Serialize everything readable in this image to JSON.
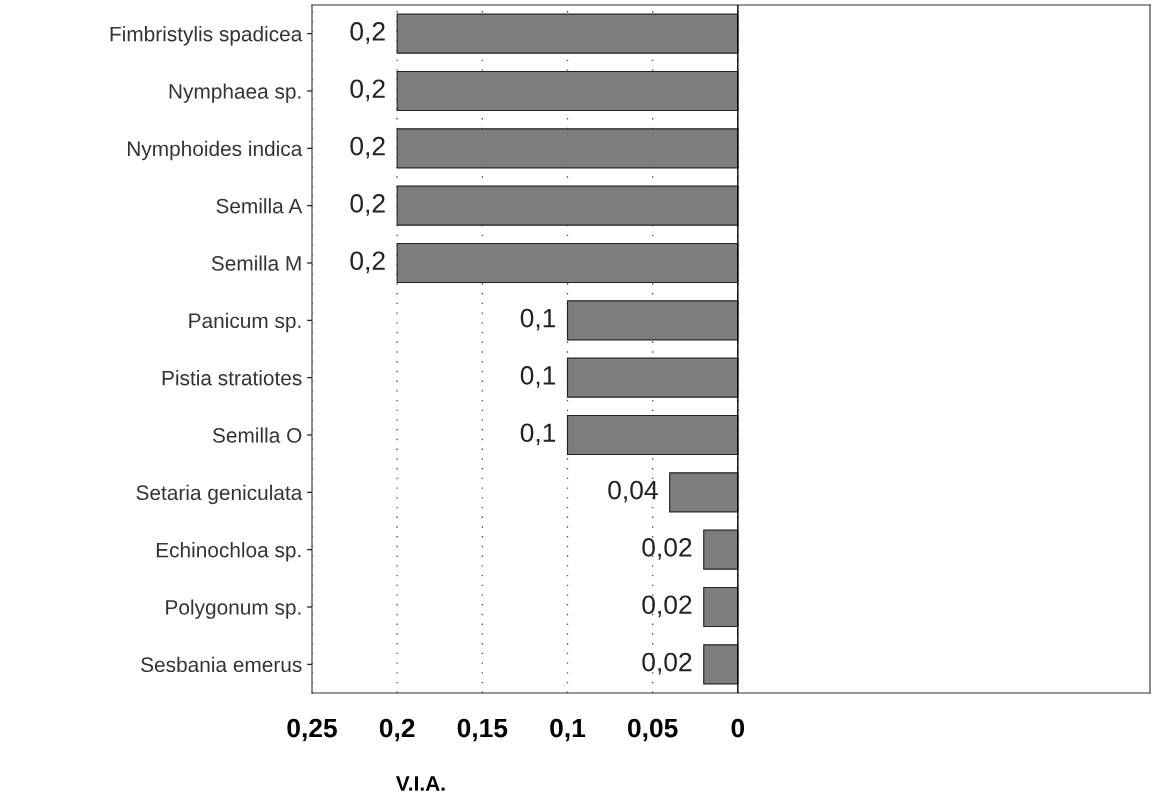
{
  "chart_data": {
    "type": "bar",
    "orientation": "horizontal",
    "xlabel": "V.I.A.",
    "categories": [
      "Fimbristylis spadicea",
      "Nymphaea sp.",
      "Nymphoides indica",
      "Semilla A",
      "Semilla M",
      "Panicum sp.",
      "Pistia stratiotes",
      "Semilla O",
      "Setaria geniculata",
      "Echinochloa sp.",
      "Polygonum sp.",
      "Sesbania emerus"
    ],
    "values": [
      0.2,
      0.2,
      0.2,
      0.2,
      0.2,
      0.1,
      0.1,
      0.1,
      0.04,
      0.02,
      0.02,
      0.02
    ],
    "value_labels": [
      "0,2",
      "0,2",
      "0,2",
      "0,2",
      "0,2",
      "0,1",
      "0,1",
      "0,1",
      "0,04",
      "0,02",
      "0,02",
      "0,02"
    ],
    "color": "#7d7d7d",
    "xlim": [
      0.25,
      -0.242
    ],
    "xticks": [
      {
        "value": 0.25,
        "label": "0,25"
      },
      {
        "value": 0.2,
        "label": "0,2"
      },
      {
        "value": 0.15,
        "label": "0,15"
      },
      {
        "value": 0.1,
        "label": "0,1"
      },
      {
        "value": 0.05,
        "label": "0,05"
      },
      {
        "value": 0,
        "label": "0"
      }
    ],
    "ref_lines": [
      {
        "axis": "x",
        "value": 0,
        "color": "#000000",
        "line_style": "solid"
      }
    ],
    "grid": "x"
  }
}
